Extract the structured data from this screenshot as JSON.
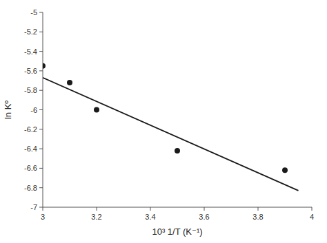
{
  "chart_data": {
    "type": "scatter",
    "xlabel": "10³ 1/T (K⁻¹)",
    "ylabel": "ln Kº",
    "xlim": [
      3,
      4
    ],
    "ylim": [
      -7,
      -5
    ],
    "xticks": [
      3,
      3.2,
      3.4,
      3.6,
      3.8,
      4
    ],
    "yticks": [
      -7,
      -6.8,
      -6.6,
      -6.4,
      -6.2,
      -6,
      -5.8,
      -5.6,
      -5.4,
      -5.2,
      -5
    ],
    "grid": false,
    "series": [
      {
        "type": "scatter",
        "color": "#1a1a1a",
        "x": [
          3.0,
          3.1,
          3.2,
          3.5,
          3.9
        ],
        "values": [
          -5.55,
          -5.72,
          -6.0,
          -6.42,
          -6.62
        ]
      },
      {
        "type": "line",
        "color": "#1a1a1a",
        "x": [
          3.0,
          3.95
        ],
        "values": [
          -5.67,
          -6.83
        ]
      }
    ]
  }
}
